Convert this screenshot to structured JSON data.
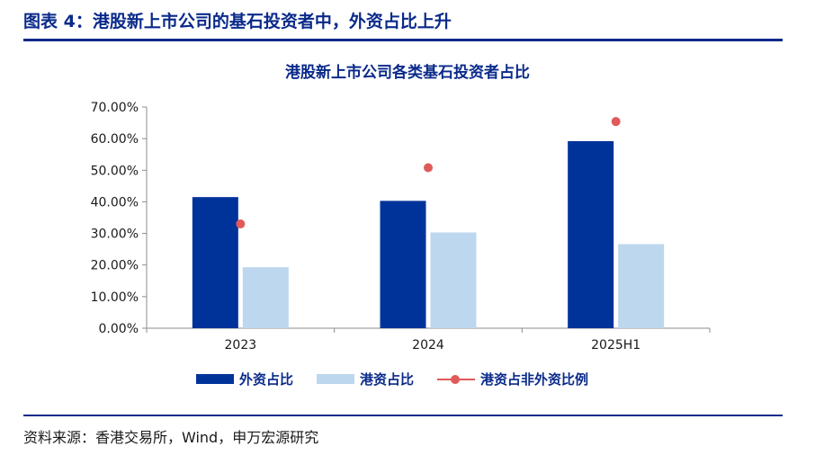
{
  "figure": {
    "title": "图表 4：港股新上市公司的基石投资者中，外资占比上升",
    "source": "资料来源：香港交易所，Wind，申万宏源研究"
  },
  "chart_data": {
    "type": "bar",
    "title": "港股新上市公司各类基石投资者占比",
    "categories": [
      "2023",
      "2024",
      "2025H1"
    ],
    "series": [
      {
        "name": "外资占比",
        "kind": "bar",
        "color": "#003399",
        "values": [
          41.5,
          40.3,
          59.2
        ]
      },
      {
        "name": "港资占比",
        "kind": "bar",
        "color": "#bdd7ee",
        "values": [
          19.3,
          30.3,
          26.6
        ]
      },
      {
        "name": "港资占非外资比例",
        "kind": "scatter",
        "color": "#e05a5a",
        "values": [
          33.0,
          50.8,
          65.4
        ]
      }
    ],
    "y_ticks": [
      "0.00%",
      "10.00%",
      "20.00%",
      "30.00%",
      "40.00%",
      "50.00%",
      "60.00%",
      "70.00%"
    ],
    "ylim": [
      0,
      70
    ],
    "legend_position": "bottom"
  }
}
